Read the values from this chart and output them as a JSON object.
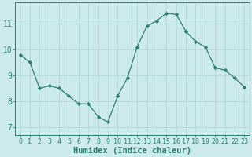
{
  "x": [
    0,
    1,
    2,
    3,
    4,
    5,
    6,
    7,
    8,
    9,
    10,
    11,
    12,
    13,
    14,
    15,
    16,
    17,
    18,
    19,
    20,
    21,
    22,
    23
  ],
  "y": [
    9.8,
    9.5,
    8.5,
    8.6,
    8.5,
    8.2,
    7.9,
    7.9,
    7.4,
    7.2,
    8.2,
    8.9,
    10.1,
    10.9,
    11.1,
    11.4,
    11.35,
    10.7,
    10.3,
    10.1,
    9.3,
    9.2,
    8.9,
    8.55
  ],
  "line_color": "#2d7d6e",
  "marker": "D",
  "marker_size": 2.2,
  "bg_color": "#cdeaea",
  "grid_color": "#aed4d4",
  "axis_color": "#2d7d6e",
  "xlabel": "Humidex (Indice chaleur)",
  "xlabel_fontsize": 7.5,
  "tick_fontsize": 6.0,
  "ytick_fontsize": 7.0,
  "ylabel_ticks": [
    7,
    8,
    9,
    10,
    11
  ],
  "xlim": [
    -0.5,
    23.5
  ],
  "ylim": [
    6.7,
    11.8
  ]
}
